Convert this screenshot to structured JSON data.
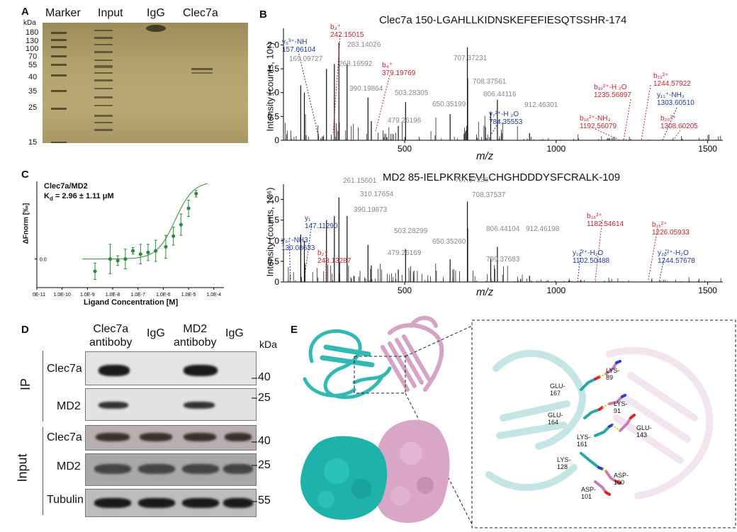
{
  "panelA": {
    "label": "A",
    "lanes": [
      "Marker",
      "Input",
      "IgG",
      "Clec7a"
    ],
    "kda_unit": "kDa",
    "markers": [
      "180",
      "130",
      "100",
      "70",
      "55",
      "40",
      "35",
      "25",
      "15"
    ]
  },
  "panelB": {
    "label": "B",
    "spectra": [
      {
        "title": "Clec7a 150-LGAHLLKIDNSKEFEFIESQTSSHR-174",
        "ylabel": "Intensity (counts, 10⁶)",
        "xlabel": "m/z",
        "yticks": [
          "0",
          "0.5",
          "1.0",
          "1.5",
          "2.0"
        ],
        "xticks": [
          "500",
          "1000",
          "1500"
        ],
        "ann_blue": [
          [
            "y₆³⁺-NH",
            "157.06104"
          ],
          [
            "y₇²⁺-H ₂O",
            "784.35553"
          ],
          [
            "y₁₁⁺-NH₃",
            "1303.60510"
          ]
        ],
        "ann_red": [
          [
            "b₃⁺",
            "242.15015"
          ],
          [
            "b₄⁺",
            "379.19769"
          ],
          [
            "b₁₉²⁺-H ₂O",
            "1235.56897"
          ],
          [
            "b₁₉²⁺",
            "1244.57922"
          ],
          [
            "b₁₈²⁺-NH₃",
            "1192.56079"
          ],
          [
            "b₂₀²⁺",
            "1308.60205"
          ]
        ],
        "ann_gray": [
          "169.09727",
          "283.14026",
          "268.16592",
          "390.19864",
          "503.28305",
          "650.35199",
          "479.26196",
          "707.37231",
          "708.37561",
          "806.44116",
          "912.46301"
        ]
      },
      {
        "title": "MD2 85-IELPKRKEVLCHGHDDDYSFCRALK-109",
        "ylabel": "Intensity (counts, 10⁶)",
        "xlabel": "m/z",
        "yticks": [
          "0",
          "0.5",
          "1.0",
          "1.5",
          "2.0"
        ],
        "xticks": [
          "500",
          "1000",
          "1500"
        ],
        "ann_blue": [
          [
            "y₁ 147.11290",
            ""
          ],
          [
            "y₉⁺-NH3",
            "130.08633"
          ],
          [
            "y₁₈²⁺-H₂O",
            "1102.50488"
          ],
          [
            "y₂₀²⁺-H₂O",
            "1244.57678"
          ]
        ],
        "ann_red": [
          [
            "b₂⁺",
            "243.13287"
          ],
          [
            "b₁₈²⁺",
            "1182.54614"
          ],
          [
            "b₁₉²⁺",
            "1226.05933"
          ]
        ],
        "ann_gray": [
          "261.15601",
          "310.17654",
          "390.19873",
          "503.28299",
          "479.26169",
          "650.35260",
          "707.37238",
          "708.37537",
          "806.44104",
          "912.46198",
          "799.37683"
        ]
      }
    ]
  },
  "panelC": {
    "label": "C",
    "legend": "Clec7a/MD2",
    "kd": "K",
    "kd_sub": "d",
    "kd_val": " = 2.96 ± 1.11 μM",
    "ylabel": "ΔFnorm [‰]",
    "xlabel": "Ligand Concentration [M]",
    "xticks": [
      "1.0E-11",
      "1.0E-10",
      "1.0E-9",
      "1.0E-8",
      "1.0E-7",
      "1.0E-6",
      "1.0E-5",
      "1.0E-4"
    ],
    "yticks": [
      "0.0"
    ]
  },
  "chart_data": {
    "type": "scatter",
    "title": "",
    "xlabel": "Ligand Concentration [M]",
    "ylabel": "ΔFnorm [‰]",
    "x_log10": [
      -8.7,
      -8.1,
      -7.8,
      -7.5,
      -7.2,
      -6.9,
      -6.6,
      -6.3,
      -5.9,
      -5.6,
      -5.3,
      -5.0,
      -4.7
    ],
    "y": [
      -0.15,
      0.0,
      -0.02,
      0.0,
      0.1,
      0.06,
      0.08,
      0.1,
      0.15,
      0.28,
      0.42,
      0.62,
      0.8
    ],
    "yerr": [
      0.1,
      0.18,
      0.06,
      0.12,
      0.04,
      0.12,
      0.1,
      0.13,
      0.14,
      0.11,
      0.13,
      0.1,
      0.04
    ],
    "fit": "sigmoid",
    "color": "#2e8b3e"
  },
  "panelD": {
    "label": "D",
    "headers": [
      "Clec7a\nantiboby",
      "IgG",
      "MD2\nantiboby",
      "IgG"
    ],
    "h1a": "Clec7a",
    "h1b": "antiboby",
    "h2": "IgG",
    "h3a": "MD2",
    "h3b": "antiboby",
    "h4": "IgG",
    "kda": "kDa",
    "ip": "IP",
    "input": "Input",
    "rows": [
      {
        "name": "Clec7a",
        "mw": "40"
      },
      {
        "name": "MD2",
        "mw": "25"
      },
      {
        "name": "Clec7a",
        "mw": "40"
      },
      {
        "name": "MD2",
        "mw": "25"
      },
      {
        "name": "Tubulin",
        "mw": "55"
      }
    ]
  },
  "panelE": {
    "label": "E",
    "residues": [
      "LYS-89",
      "GLU-167",
      "LYS-91",
      "GLU-164",
      "GLU-143",
      "LYS-161",
      "LYS-128",
      "ASP-100",
      "ASP-101"
    ]
  }
}
